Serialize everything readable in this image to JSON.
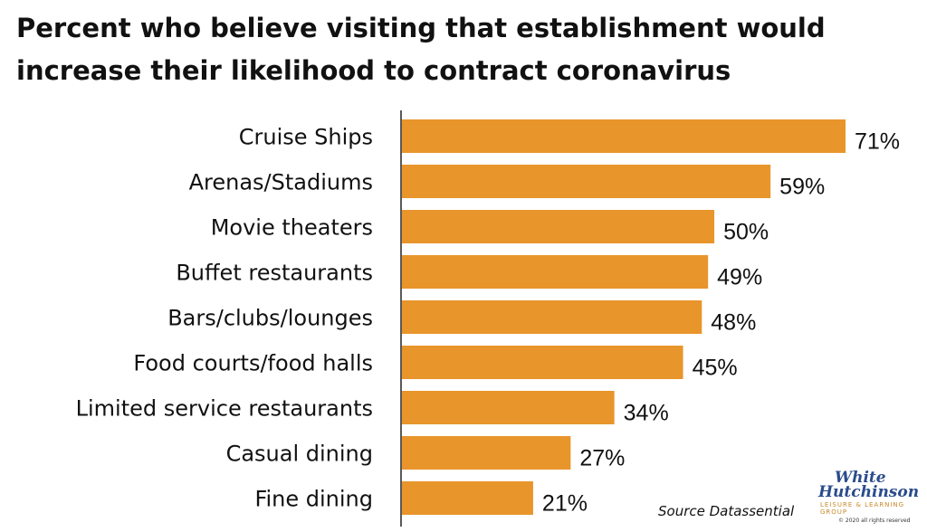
{
  "chart_data": {
    "type": "bar",
    "orientation": "horizontal",
    "title": "Percent who believe visiting that establishment would increase their likelihood to contract coronavirus",
    "categories": [
      "Cruise Ships",
      "Arenas/Stadiums",
      "Movie theaters",
      "Buffet restaurants",
      "Bars/clubs/lounges",
      "Food courts/food halls",
      "Limited service restaurants",
      "Casual dining",
      "Fine dining"
    ],
    "values": [
      71,
      59,
      50,
      49,
      48,
      45,
      34,
      27,
      21
    ],
    "value_labels": [
      "71%",
      "59%",
      "50%",
      "49%",
      "48%",
      "45%",
      "34%",
      "27%",
      "21%"
    ],
    "xlim": [
      0,
      75
    ],
    "bar_color": "#E8952B",
    "grid": false,
    "legend": "none"
  },
  "source": "Source Datassential",
  "logo": {
    "line1": "White",
    "line2": "Hutchinson",
    "arc": "LEISURE & LEARNING GROUP",
    "copyright": "© 2020 all rights reserved"
  }
}
